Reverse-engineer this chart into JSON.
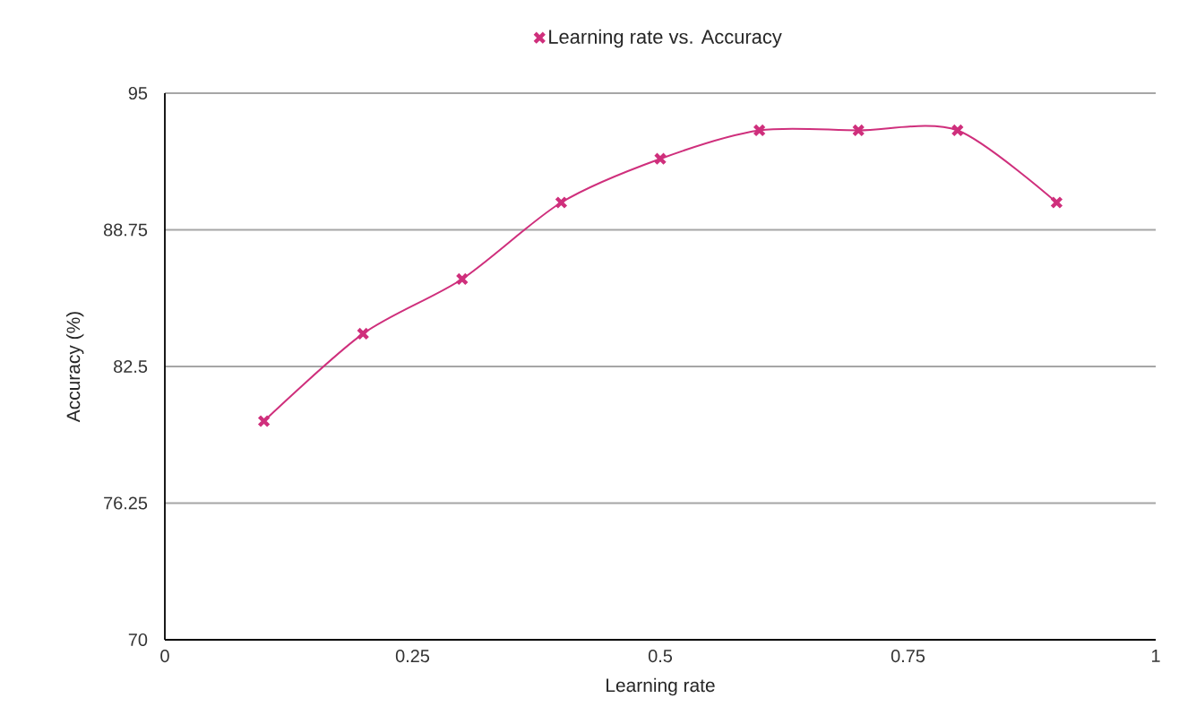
{
  "chart_data": {
    "type": "line",
    "xlabel": "Learning rate",
    "ylabel": "Accuracy (%)",
    "x": [
      0.1,
      0.2,
      0.3,
      0.4,
      0.5,
      0.6,
      0.7,
      0.8,
      0.9
    ],
    "series": [
      {
        "name": "Learning rate vs. Accuracy",
        "color": "#cf2f7c",
        "values": [
          80,
          84,
          86.5,
          90,
          92,
          93.3,
          93.3,
          93.3,
          90
        ]
      }
    ],
    "xlim": [
      0,
      1
    ],
    "xticks": [
      0,
      0.25,
      0.5,
      0.75,
      1
    ],
    "ylim": [
      70,
      95
    ],
    "yticks": [
      70,
      76.25,
      82.5,
      88.75,
      95
    ],
    "grid": "y",
    "legend": "top",
    "marker": "cross",
    "line_style": "solid"
  }
}
